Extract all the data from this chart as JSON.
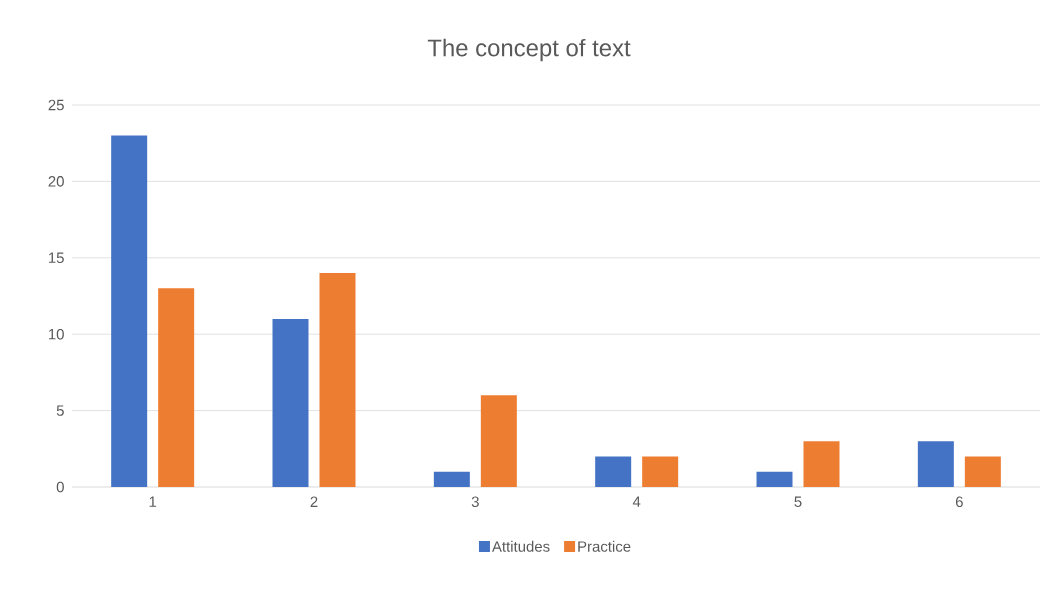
{
  "chart_data": {
    "type": "bar",
    "title": "The concept of text",
    "categories": [
      "1",
      "2",
      "3",
      "4",
      "5",
      "6"
    ],
    "series": [
      {
        "name": "Attitudes",
        "color": "#4472c4",
        "values": [
          23,
          11,
          1,
          2,
          1,
          3
        ]
      },
      {
        "name": "Practice",
        "color": "#ed7d31",
        "values": [
          13,
          14,
          6,
          2,
          3,
          2
        ]
      }
    ],
    "ylim": [
      0,
      25
    ],
    "yticks": [
      0,
      5,
      10,
      15,
      20,
      25
    ],
    "grid": "y",
    "legend": "bottom"
  }
}
